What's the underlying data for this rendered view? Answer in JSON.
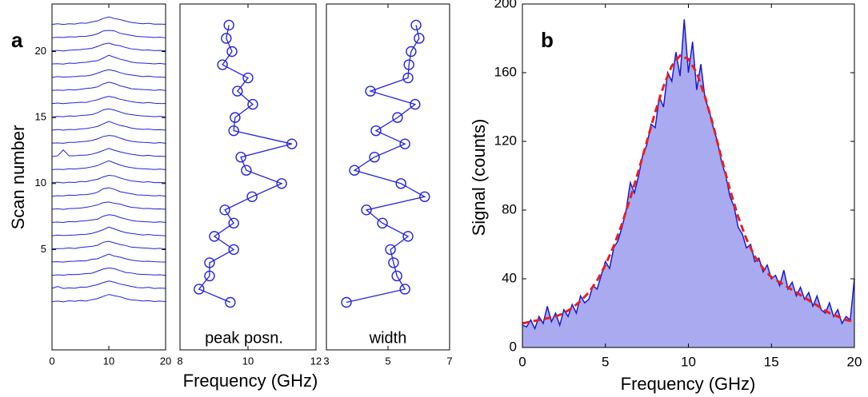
{
  "chart_data": [
    {
      "type": "line",
      "panel_label": "a",
      "ylabel": "Scan number",
      "xlabel": "Frequency (GHz)",
      "color": "#2222dd",
      "xlim": [
        0,
        20
      ],
      "xticks": [
        0,
        10,
        20
      ],
      "ylim": [
        -2.6,
        23.6
      ],
      "yticks": [
        5,
        10,
        15,
        20
      ],
      "x": [
        0,
        1,
        2,
        3,
        4,
        5,
        6,
        7,
        8,
        9,
        10,
        11,
        12,
        13,
        14,
        15,
        16,
        17,
        18,
        19,
        20
      ],
      "series": [
        {
          "values": [
            1.05,
            1.1,
            1.04,
            1.12,
            1.08,
            1.14,
            1.1,
            1.2,
            1.28,
            1.45,
            1.6,
            1.5,
            1.42,
            1.28,
            1.18,
            1.16,
            1.1,
            1.13,
            1.06,
            1.1,
            1.05
          ]
        },
        {
          "values": [
            2.06,
            2.2,
            2.05,
            2.1,
            2.07,
            2.16,
            2.14,
            2.25,
            2.34,
            2.5,
            2.62,
            2.52,
            2.38,
            2.3,
            2.2,
            2.12,
            2.1,
            2.14,
            2.05,
            2.08,
            2.06
          ]
        },
        {
          "values": [
            3.04,
            3.09,
            3.06,
            3.11,
            3.1,
            3.13,
            3.18,
            3.2,
            3.36,
            3.52,
            3.6,
            3.55,
            3.4,
            3.26,
            3.22,
            3.14,
            3.12,
            3.1,
            3.07,
            3.09,
            3.04
          ]
        },
        {
          "values": [
            4.06,
            4.08,
            4.05,
            4.1,
            4.12,
            4.15,
            4.14,
            4.26,
            4.3,
            4.48,
            4.66,
            4.5,
            4.42,
            4.3,
            4.2,
            4.14,
            4.1,
            4.12,
            4.08,
            4.06,
            4.05
          ]
        },
        {
          "values": [
            5.05,
            5.07,
            5.08,
            5.12,
            5.08,
            5.16,
            5.2,
            5.24,
            5.32,
            5.55,
            5.62,
            5.5,
            5.38,
            5.3,
            5.18,
            5.15,
            5.12,
            5.1,
            5.06,
            5.09,
            5.05
          ]
        },
        {
          "values": [
            6.04,
            6.1,
            6.06,
            6.08,
            6.1,
            6.14,
            6.15,
            6.22,
            6.35,
            6.5,
            6.7,
            6.56,
            6.4,
            6.28,
            6.22,
            6.16,
            6.1,
            6.14,
            6.08,
            6.07,
            6.04
          ]
        },
        {
          "values": [
            7.06,
            7.08,
            7.05,
            7.12,
            7.1,
            7.16,
            7.18,
            7.24,
            7.3,
            7.52,
            7.64,
            7.58,
            7.42,
            7.32,
            7.2,
            7.14,
            7.12,
            7.1,
            7.06,
            7.1,
            7.05
          ]
        },
        {
          "values": [
            8.05,
            8.09,
            8.04,
            8.1,
            8.12,
            8.14,
            8.2,
            8.28,
            8.38,
            8.55,
            8.6,
            8.5,
            8.44,
            8.3,
            8.2,
            8.16,
            8.1,
            8.12,
            8.07,
            8.08,
            8.05
          ]
        },
        {
          "values": [
            9.04,
            9.08,
            9.06,
            9.12,
            9.1,
            9.15,
            9.16,
            9.22,
            9.34,
            9.6,
            9.68,
            9.56,
            9.38,
            9.3,
            9.22,
            9.14,
            9.12,
            9.1,
            9.06,
            9.09,
            9.04
          ]
        },
        {
          "values": [
            10.06,
            10.1,
            10.05,
            10.1,
            10.08,
            10.16,
            10.14,
            10.24,
            10.32,
            10.5,
            10.62,
            10.58,
            10.42,
            10.3,
            10.2,
            10.15,
            10.1,
            10.14,
            10.07,
            10.08,
            10.06
          ]
        },
        {
          "values": [
            11.05,
            11.08,
            11.06,
            11.12,
            11.1,
            11.14,
            11.18,
            11.26,
            11.36,
            11.55,
            11.72,
            11.56,
            11.4,
            11.28,
            11.2,
            11.14,
            11.12,
            11.1,
            11.06,
            11.1,
            11.05
          ]
        },
        {
          "values": [
            12.04,
            12.1,
            12.55,
            12.1,
            12.1,
            12.15,
            12.15,
            12.22,
            12.34,
            12.5,
            12.66,
            12.52,
            12.4,
            12.3,
            12.22,
            12.16,
            12.1,
            12.14,
            12.08,
            12.07,
            12.04
          ]
        },
        {
          "values": [
            13.06,
            13.08,
            13.05,
            13.12,
            13.12,
            13.16,
            13.2,
            13.26,
            13.38,
            13.56,
            13.64,
            13.6,
            13.44,
            13.3,
            13.2,
            13.15,
            13.12,
            13.1,
            13.06,
            13.1,
            13.05
          ]
        },
        {
          "values": [
            14.05,
            14.09,
            14.04,
            14.1,
            14.08,
            14.14,
            14.16,
            14.24,
            14.32,
            14.52,
            14.7,
            14.55,
            14.4,
            14.32,
            14.2,
            14.14,
            14.1,
            14.12,
            14.07,
            14.08,
            14.05
          ]
        },
        {
          "values": [
            15.04,
            15.08,
            15.06,
            15.12,
            15.1,
            15.15,
            15.18,
            15.22,
            15.36,
            15.58,
            15.66,
            15.56,
            15.42,
            15.28,
            15.22,
            15.16,
            15.12,
            15.1,
            15.06,
            15.09,
            15.04
          ]
        },
        {
          "values": [
            16.06,
            16.1,
            16.05,
            16.1,
            16.12,
            16.16,
            16.14,
            16.26,
            16.34,
            16.5,
            16.6,
            16.52,
            16.38,
            16.3,
            16.2,
            16.14,
            16.1,
            16.14,
            16.08,
            16.06,
            16.06
          ]
        },
        {
          "values": [
            17.05,
            17.08,
            17.06,
            17.12,
            17.08,
            17.14,
            17.2,
            17.24,
            17.32,
            17.55,
            17.68,
            17.58,
            17.4,
            17.3,
            17.18,
            17.15,
            17.12,
            17.1,
            17.06,
            17.1,
            17.05
          ]
        },
        {
          "values": [
            18.04,
            18.1,
            18.06,
            18.08,
            18.1,
            18.15,
            18.15,
            18.22,
            18.36,
            18.52,
            18.62,
            18.54,
            18.4,
            18.28,
            18.22,
            18.16,
            18.1,
            18.14,
            18.08,
            18.07,
            18.04
          ]
        },
        {
          "values": [
            19.06,
            19.08,
            19.05,
            19.12,
            19.1,
            19.16,
            19.18,
            19.26,
            19.3,
            19.5,
            19.72,
            19.56,
            19.42,
            19.32,
            19.2,
            19.14,
            19.12,
            19.1,
            19.06,
            19.1,
            19.05
          ]
        },
        {
          "values": [
            20.05,
            20.09,
            20.04,
            20.1,
            20.12,
            20.14,
            20.2,
            20.24,
            20.38,
            20.55,
            20.64,
            20.5,
            20.44,
            20.3,
            20.2,
            20.16,
            20.1,
            20.12,
            20.07,
            20.08,
            20.05
          ]
        },
        {
          "values": [
            21.04,
            21.08,
            21.06,
            21.12,
            21.1,
            21.15,
            21.16,
            21.22,
            21.34,
            21.56,
            21.6,
            21.56,
            21.38,
            21.3,
            21.22,
            21.14,
            21.12,
            21.1,
            21.06,
            21.09,
            21.04
          ]
        },
        {
          "values": [
            22.06,
            22.1,
            22.05,
            22.1,
            22.08,
            22.16,
            22.14,
            22.24,
            22.32,
            22.5,
            22.62,
            22.5,
            22.42,
            22.3,
            22.2,
            22.15,
            22.1,
            22.14,
            22.07,
            22.08,
            22.06
          ]
        }
      ]
    },
    {
      "type": "line",
      "orientation": "horizontal",
      "markers": true,
      "annotation": "peak posn.",
      "color": "#2222dd",
      "xlim": [
        8,
        12
      ],
      "xticks": [
        8,
        10,
        12
      ],
      "ylim": [
        -2.6,
        23.6
      ],
      "y": [
        1,
        2,
        3,
        4,
        5,
        6,
        7,
        8,
        9,
        10,
        11,
        12,
        13,
        14,
        15,
        16,
        17,
        18,
        19,
        20,
        21,
        22
      ],
      "values": [
        9.48,
        8.56,
        8.87,
        8.87,
        9.58,
        9.01,
        9.58,
        9.32,
        10.12,
        10.99,
        9.95,
        9.79,
        11.29,
        9.58,
        9.62,
        10.14,
        9.69,
        10.0,
        9.25,
        9.53,
        9.36,
        9.44
      ]
    },
    {
      "type": "line",
      "orientation": "horizontal",
      "markers": true,
      "annotation": "width",
      "color": "#2222dd",
      "xlim": [
        3,
        7
      ],
      "xticks": [
        3,
        5,
        7
      ],
      "ylim": [
        -2.6,
        23.6
      ],
      "y": [
        1,
        2,
        3,
        4,
        5,
        6,
        7,
        8,
        9,
        10,
        11,
        12,
        13,
        14,
        15,
        16,
        17,
        18,
        19,
        20,
        21,
        22
      ],
      "values": [
        3.65,
        5.55,
        5.29,
        5.18,
        5.08,
        5.65,
        4.82,
        4.3,
        6.19,
        5.42,
        3.91,
        4.56,
        5.55,
        4.61,
        5.31,
        5.88,
        4.43,
        5.65,
        5.68,
        5.75,
        6.01,
        5.91
      ]
    },
    {
      "type": "area",
      "panel_label": "b",
      "ylabel": "Signal (counts)",
      "xlabel": "Frequency (GHz)",
      "xlim": [
        0,
        20
      ],
      "xticks": [
        0,
        5,
        10,
        15,
        20
      ],
      "ylim": [
        0,
        200
      ],
      "yticks": [
        0,
        40,
        80,
        120,
        160,
        200
      ],
      "series": [
        {
          "color": "#1a1ad0",
          "fill": "#aaaaf0",
          "x": [
            0,
            0.25,
            0.5,
            0.75,
            1,
            1.25,
            1.5,
            1.75,
            2,
            2.25,
            2.5,
            2.75,
            3,
            3.25,
            3.5,
            3.75,
            4,
            4.25,
            4.5,
            4.75,
            5,
            5.25,
            5.5,
            5.75,
            6,
            6.25,
            6.5,
            6.75,
            7,
            7.25,
            7.5,
            7.75,
            8,
            8.25,
            8.5,
            8.75,
            9,
            9.25,
            9.5,
            9.75,
            10,
            10.25,
            10.5,
            10.75,
            11,
            11.25,
            11.5,
            11.75,
            12,
            12.25,
            12.5,
            12.75,
            13,
            13.25,
            13.5,
            13.75,
            14,
            14.25,
            14.5,
            14.75,
            15,
            15.25,
            15.5,
            15.75,
            16,
            16.25,
            16.5,
            16.75,
            17,
            17.25,
            17.5,
            17.75,
            18,
            18.25,
            18.5,
            18.75,
            19,
            19.25,
            19.5,
            19.75,
            20
          ],
          "values": [
            13,
            12,
            16,
            11,
            18,
            14,
            24,
            15,
            20,
            13,
            22,
            18,
            25,
            20,
            30,
            26,
            28,
            36,
            34,
            42,
            50,
            46,
            58,
            62,
            70,
            80,
            96,
            90,
            100,
            112,
            118,
            130,
            128,
            146,
            140,
            160,
            155,
            172,
            158,
            191,
            160,
            178,
            150,
            165,
            145,
            138,
            128,
            120,
            108,
            100,
            88,
            82,
            70,
            66,
            58,
            60,
            50,
            52,
            44,
            48,
            40,
            42,
            36,
            45,
            34,
            38,
            30,
            35,
            28,
            32,
            24,
            30,
            22,
            20,
            26,
            18,
            22,
            14,
            18,
            16,
            40
          ]
        },
        {
          "color": "#e62020",
          "dashed": true,
          "x": [
            0,
            0.5,
            1,
            1.5,
            2,
            2.5,
            3,
            3.5,
            4,
            4.5,
            5,
            5.5,
            6,
            6.5,
            7,
            7.5,
            8,
            8.5,
            9,
            9.5,
            10,
            10.5,
            11,
            11.5,
            12,
            12.5,
            13,
            13.5,
            14,
            14.5,
            15,
            15.5,
            16,
            16.5,
            17,
            17.5,
            18,
            18.5,
            19,
            19.5,
            20
          ],
          "values": [
            14,
            15,
            16,
            17,
            18,
            20,
            23,
            27,
            32,
            39,
            48,
            59,
            72,
            87,
            103,
            120,
            137,
            152,
            164,
            170,
            168,
            160,
            146,
            129,
            110,
            92,
            76,
            63,
            53,
            46,
            41,
            38,
            35,
            32,
            29,
            26,
            23,
            20,
            18,
            16,
            15
          ]
        }
      ]
    }
  ]
}
